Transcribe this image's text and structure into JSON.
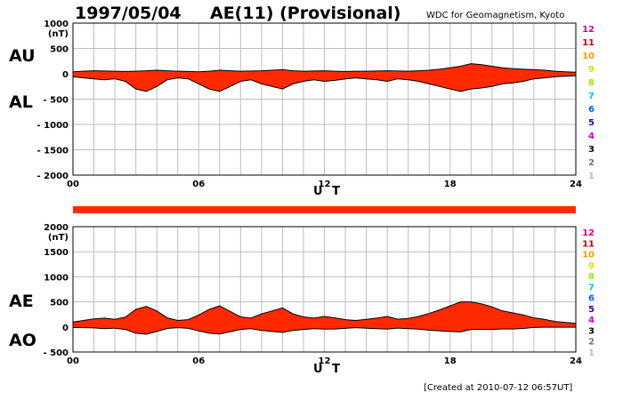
{
  "header": {
    "date": "1997/05/04",
    "title": "AE(11) (Provisional)",
    "source": "WDC for Geomagnetism, Kyoto"
  },
  "footer": {
    "created": "[Created at 2010-07-12 06:57UT]"
  },
  "chart_data": [
    {
      "type": "area",
      "labels": {
        "upper": "AU",
        "lower": "AL",
        "unit": "(nT)",
        "xlabel": "U T"
      },
      "xlim": [
        0,
        24
      ],
      "ylim": [
        -2000,
        1000
      ],
      "x_ticks": [
        "00",
        "06",
        "12",
        "18",
        "24"
      ],
      "y_ticks": [
        "1000",
        "500",
        "0",
        "- 500",
        "- 1000",
        "- 1500",
        "- 2000"
      ],
      "grid": true,
      "fill_color": "#ff2a00",
      "series": [
        {
          "name": "AU",
          "x": [
            0,
            0.5,
            1,
            1.5,
            2,
            2.5,
            3,
            3.5,
            4,
            4.5,
            5,
            5.5,
            6,
            6.5,
            7,
            7.5,
            8,
            8.5,
            9,
            9.5,
            10,
            10.5,
            11,
            11.5,
            12,
            12.5,
            13,
            13.5,
            14,
            14.5,
            15,
            15.5,
            16,
            16.5,
            17,
            17.5,
            18,
            18.5,
            19,
            19.5,
            20,
            20.5,
            21,
            21.5,
            22,
            22.5,
            23,
            23.5,
            24
          ],
          "values": [
            40,
            50,
            60,
            55,
            50,
            45,
            50,
            60,
            70,
            60,
            50,
            45,
            40,
            50,
            70,
            60,
            50,
            55,
            60,
            70,
            80,
            60,
            50,
            55,
            60,
            50,
            45,
            50,
            50,
            55,
            60,
            55,
            50,
            60,
            70,
            90,
            120,
            150,
            200,
            180,
            150,
            120,
            100,
            90,
            80,
            70,
            50,
            40,
            30
          ]
        },
        {
          "name": "AL",
          "x": [
            0,
            0.5,
            1,
            1.5,
            2,
            2.5,
            3,
            3.5,
            4,
            4.5,
            5,
            5.5,
            6,
            6.5,
            7,
            7.5,
            8,
            8.5,
            9,
            9.5,
            10,
            10.5,
            11,
            11.5,
            12,
            12.5,
            13,
            13.5,
            14,
            14.5,
            15,
            15.5,
            16,
            16.5,
            17,
            17.5,
            18,
            18.5,
            19,
            19.5,
            20,
            20.5,
            21,
            21.5,
            22,
            22.5,
            23,
            23.5,
            24
          ],
          "values": [
            -60,
            -80,
            -100,
            -120,
            -100,
            -150,
            -300,
            -350,
            -250,
            -120,
            -80,
            -100,
            -200,
            -300,
            -350,
            -250,
            -150,
            -120,
            -200,
            -250,
            -300,
            -200,
            -150,
            -120,
            -150,
            -130,
            -100,
            -80,
            -100,
            -120,
            -150,
            -100,
            -120,
            -150,
            -200,
            -250,
            -300,
            -350,
            -300,
            -280,
            -250,
            -200,
            -180,
            -150,
            -100,
            -80,
            -60,
            -50,
            -40
          ]
        }
      ]
    },
    {
      "type": "area",
      "labels": {
        "upper": "AE",
        "lower": "AO",
        "unit": "(nT)",
        "xlabel": "U T"
      },
      "xlim": [
        0,
        24
      ],
      "ylim": [
        -500,
        2000
      ],
      "x_ticks": [
        "00",
        "06",
        "12",
        "18",
        "24"
      ],
      "y_ticks": [
        "2000",
        "1500",
        "1000",
        "500",
        "0",
        "- 500"
      ],
      "grid": true,
      "fill_color": "#ff2a00",
      "series": [
        {
          "name": "AE",
          "x": [
            0,
            0.5,
            1,
            1.5,
            2,
            2.5,
            3,
            3.5,
            4,
            4.5,
            5,
            5.5,
            6,
            6.5,
            7,
            7.5,
            8,
            8.5,
            9,
            9.5,
            10,
            10.5,
            11,
            11.5,
            12,
            12.5,
            13,
            13.5,
            14,
            14.5,
            15,
            15.5,
            16,
            16.5,
            17,
            17.5,
            18,
            18.5,
            19,
            19.5,
            20,
            20.5,
            21,
            21.5,
            22,
            22.5,
            23,
            23.5,
            24
          ],
          "values": [
            100,
            130,
            160,
            175,
            150,
            195,
            350,
            410,
            320,
            180,
            130,
            145,
            240,
            350,
            420,
            310,
            200,
            175,
            260,
            320,
            380,
            260,
            200,
            175,
            210,
            180,
            145,
            130,
            150,
            175,
            210,
            155,
            170,
            210,
            270,
            340,
            420,
            500,
            500,
            460,
            400,
            320,
            280,
            240,
            180,
            150,
            110,
            90,
            70
          ]
        },
        {
          "name": "AO",
          "x": [
            0,
            0.5,
            1,
            1.5,
            2,
            2.5,
            3,
            3.5,
            4,
            4.5,
            5,
            5.5,
            6,
            6.5,
            7,
            7.5,
            8,
            8.5,
            9,
            9.5,
            10,
            10.5,
            11,
            11.5,
            12,
            12.5,
            13,
            13.5,
            14,
            14.5,
            15,
            15.5,
            16,
            16.5,
            17,
            17.5,
            18,
            18.5,
            19,
            19.5,
            20,
            20.5,
            21,
            21.5,
            22,
            22.5,
            23,
            23.5,
            24
          ],
          "values": [
            -10,
            -15,
            -20,
            -33,
            -25,
            -52,
            -125,
            -145,
            -90,
            -30,
            -15,
            -28,
            -80,
            -125,
            -140,
            -95,
            -50,
            -33,
            -70,
            -90,
            -110,
            -70,
            -50,
            -33,
            -45,
            -40,
            -28,
            -15,
            -25,
            -33,
            -45,
            -23,
            -35,
            -45,
            -65,
            -80,
            -90,
            -100,
            -50,
            -50,
            -50,
            -40,
            -40,
            -30,
            -10,
            -5,
            -5,
            -5,
            -5
          ]
        }
      ]
    }
  ],
  "station_levels": {
    "labels": [
      "12",
      "11",
      "10",
      "9",
      "8",
      "7",
      "6",
      "5",
      "4",
      "3",
      "2",
      "1"
    ],
    "colors": [
      "#e6007a",
      "#cc0000",
      "#ff9900",
      "#dddd00",
      "#99ee00",
      "#00cccc",
      "#0066ff",
      "#3300cc",
      "#cc00cc",
      "#000000",
      "#777777",
      "#bbbbbb"
    ]
  }
}
